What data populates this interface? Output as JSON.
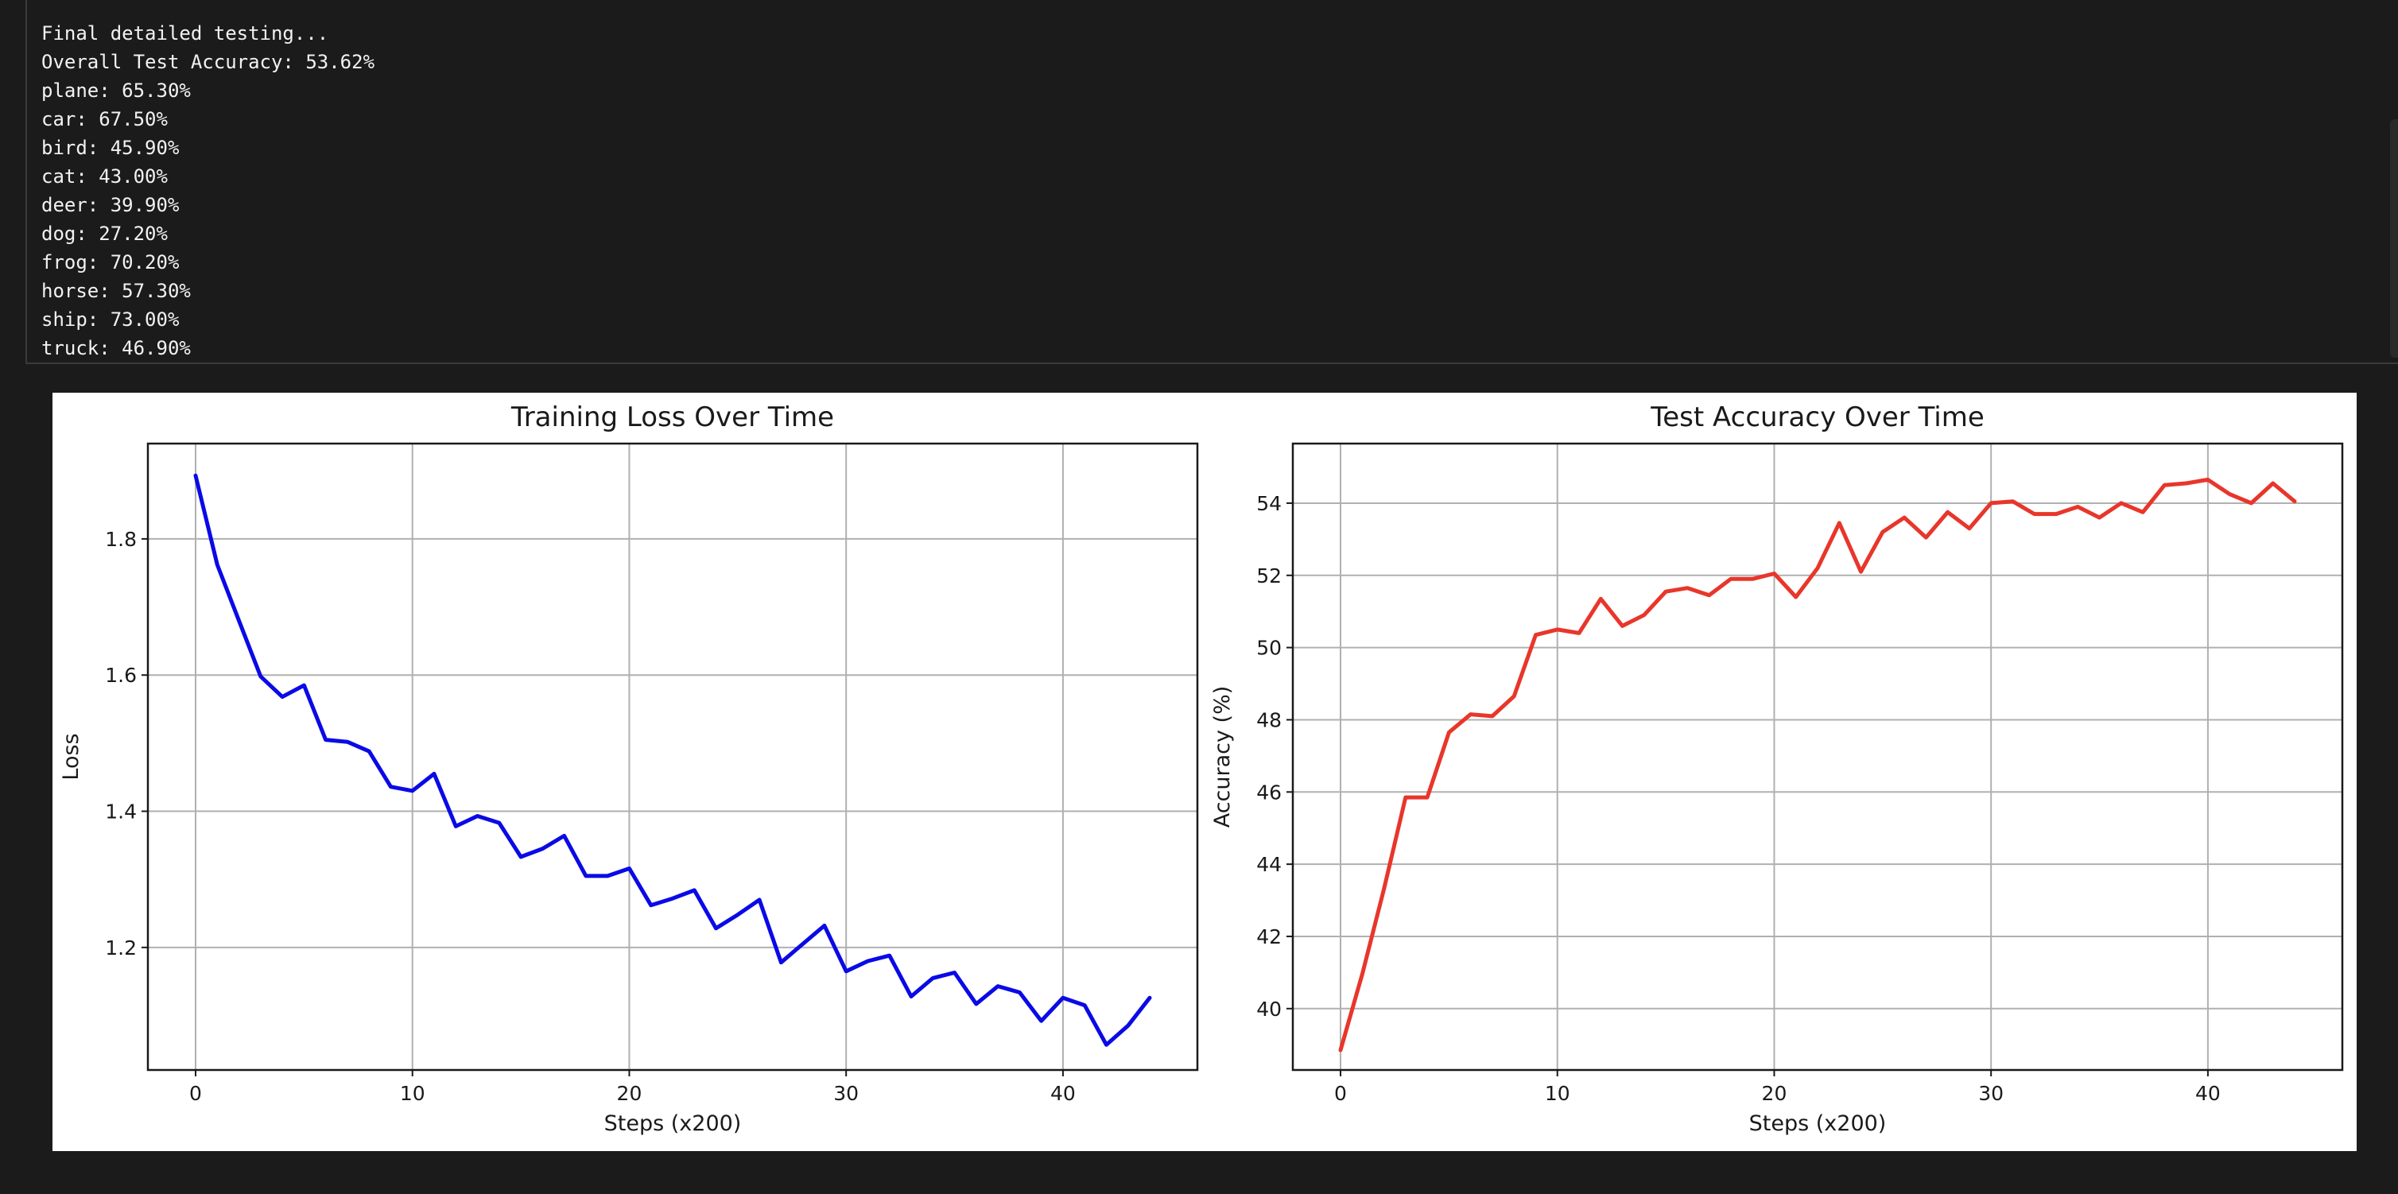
{
  "console": {
    "lines": [
      "Final detailed testing...",
      "Overall Test Accuracy: 53.62%",
      "plane: 65.30%",
      "car: 67.50%",
      "bird: 45.90%",
      "cat: 43.00%",
      "deer: 39.90%",
      "dog: 27.20%",
      "frog: 70.20%",
      "horse: 57.30%",
      "ship: 73.00%",
      "truck: 46.90%"
    ]
  },
  "chart_data": [
    {
      "type": "line",
      "title": "Training Loss Over Time",
      "xlabel": "Steps (x200)",
      "ylabel": "Loss",
      "xlim": [
        -2.2,
        46.2
      ],
      "ylim": [
        1.02,
        1.94
      ],
      "xticks": [
        0,
        10,
        20,
        30,
        40
      ],
      "yticks": [
        1.2,
        1.4,
        1.6,
        1.8
      ],
      "ytick_labels": [
        "1.2",
        "1.4",
        "1.6",
        "1.8"
      ],
      "grid": true,
      "color": "#0a0ae6",
      "x": [
        0,
        1,
        2,
        3,
        4,
        5,
        6,
        7,
        8,
        9,
        10,
        11,
        12,
        13,
        14,
        15,
        16,
        17,
        18,
        19,
        20,
        21,
        22,
        23,
        24,
        25,
        26,
        27,
        28,
        29,
        30,
        31,
        32,
        33,
        34,
        35,
        36,
        37,
        38,
        39,
        40,
        41,
        42,
        43,
        44
      ],
      "y": [
        1.893,
        1.762,
        1.68,
        1.598,
        1.568,
        1.585,
        1.505,
        1.502,
        1.488,
        1.436,
        1.43,
        1.455,
        1.378,
        1.393,
        1.383,
        1.333,
        1.345,
        1.364,
        1.305,
        1.305,
        1.316,
        1.262,
        1.272,
        1.284,
        1.228,
        1.248,
        1.27,
        1.178,
        1.205,
        1.232,
        1.165,
        1.18,
        1.188,
        1.128,
        1.155,
        1.163,
        1.117,
        1.143,
        1.134,
        1.092,
        1.126,
        1.115,
        1.057,
        1.085,
        1.126
      ]
    },
    {
      "type": "line",
      "title": "Test Accuracy Over Time",
      "xlabel": "Steps (x200)",
      "ylabel": "Accuracy (%)",
      "xlim": [
        -2.2,
        46.2
      ],
      "ylim": [
        38.3,
        55.65
      ],
      "xticks": [
        0,
        10,
        20,
        30,
        40
      ],
      "yticks": [
        40,
        42,
        44,
        46,
        48,
        50,
        52,
        54
      ],
      "ytick_labels": [
        "40",
        "42",
        "44",
        "46",
        "48",
        "50",
        "52",
        "54"
      ],
      "grid": true,
      "color": "#e8362b",
      "x": [
        0,
        1,
        2,
        3,
        4,
        5,
        6,
        7,
        8,
        9,
        10,
        11,
        12,
        13,
        14,
        15,
        16,
        17,
        18,
        19,
        20,
        21,
        22,
        23,
        24,
        25,
        26,
        27,
        28,
        29,
        30,
        31,
        32,
        33,
        34,
        35,
        36,
        37,
        38,
        39,
        40,
        41,
        42,
        43,
        44
      ],
      "y": [
        38.85,
        40.95,
        43.3,
        45.85,
        45.85,
        47.65,
        48.15,
        48.1,
        48.65,
        50.35,
        50.5,
        50.4,
        51.35,
        50.6,
        50.9,
        51.55,
        51.65,
        51.45,
        51.9,
        51.9,
        52.05,
        51.4,
        52.2,
        53.45,
        52.1,
        53.2,
        53.6,
        53.05,
        53.75,
        53.3,
        54.0,
        54.05,
        53.7,
        53.7,
        53.9,
        53.6,
        54.0,
        53.75,
        54.5,
        54.55,
        54.65,
        54.25,
        54.0,
        54.55,
        54.05
      ]
    }
  ]
}
